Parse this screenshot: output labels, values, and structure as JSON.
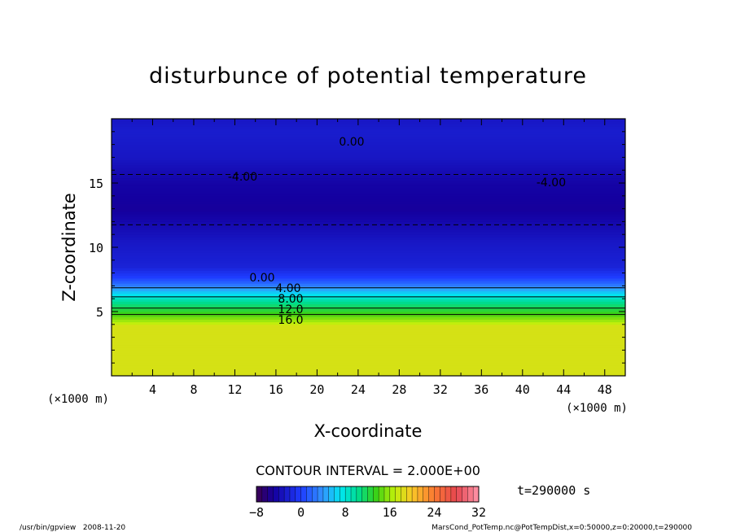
{
  "chart_data": {
    "type": "heatmap",
    "title": "disturbunce of potential temperature",
    "xlabel": "X-coordinate",
    "ylabel": "Z-coordinate",
    "x_unit": "(×1000 m)",
    "y_unit": "(×1000 m)",
    "xlim": [
      0,
      50
    ],
    "ylim": [
      0,
      20
    ],
    "x_ticks": [
      "4",
      "8",
      "12",
      "16",
      "20",
      "24",
      "28",
      "32",
      "36",
      "40",
      "44",
      "48"
    ],
    "y_ticks": [
      "5",
      "10",
      "15"
    ],
    "contour_interval_text": "CONTOUR INTERVAL = 2.000E+00",
    "colorbar": {
      "min": -8,
      "max": 32,
      "tick_labels": [
        "−8",
        "0",
        "8",
        "16",
        "24",
        "32"
      ]
    },
    "contour_labels": [
      "0.00",
      "-4.00",
      "-4.00",
      "0.00",
      "4.00",
      "8.00",
      "12.0",
      "16.0"
    ],
    "profile": [
      {
        "z": 0,
        "value": 18
      },
      {
        "z": 3.9,
        "value": 18
      },
      {
        "z": 4.3,
        "value": 16
      },
      {
        "z": 5.0,
        "value": 13
      },
      {
        "z": 5.8,
        "value": 10
      },
      {
        "z": 6.5,
        "value": 6
      },
      {
        "z": 7.2,
        "value": 2
      },
      {
        "z": 7.7,
        "value": 0
      },
      {
        "z": 8.5,
        "value": -2
      },
      {
        "z": 10.5,
        "value": -3
      },
      {
        "z": 13.0,
        "value": -5
      },
      {
        "z": 15.0,
        "value": -4.5
      },
      {
        "z": 17.0,
        "value": -3
      },
      {
        "z": 19.0,
        "value": -2.5
      },
      {
        "z": 20.0,
        "value": -3
      }
    ]
  },
  "annotations": {
    "time": "t=290000 s",
    "program_footer": "/usr/bin/gpview   2008-11-20",
    "source_footer": "MarsCond_PotTemp.nc@PotTempDist,x=0:50000,z=0:20000,t=290000"
  }
}
